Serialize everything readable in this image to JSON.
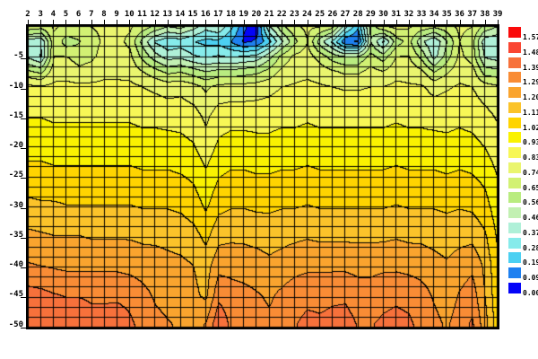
{
  "figure": {
    "background": "#ffffff",
    "plot_border_color": "#000000",
    "mesh_line_color": "#000000"
  },
  "x_axis": {
    "position": "top",
    "labels": [
      "2",
      "3",
      "4",
      "5",
      "6",
      "7",
      "8",
      "9",
      "10",
      "11",
      "12",
      "13",
      "14",
      "15",
      "16",
      "17",
      "18",
      "19",
      "20",
      "21",
      "22",
      "23",
      "24",
      "25",
      "26",
      "27",
      "28",
      "29",
      "30",
      "31",
      "32",
      "33",
      "34",
      "35",
      "36",
      "37",
      "38",
      "39"
    ]
  },
  "y_axis": {
    "labels": [
      "-5",
      "-10",
      "-15",
      "-20",
      "-25",
      "-30",
      "-35",
      "-40",
      "-45",
      "-50"
    ]
  },
  "colorbar": {
    "position": "right",
    "entries": [
      {
        "value": "1.57",
        "color": "#fa0a0a"
      },
      {
        "value": "1.48",
        "color": "#fa4632"
      },
      {
        "value": "1.39",
        "color": "#f7713b"
      },
      {
        "value": "1.29",
        "color": "#f98c35"
      },
      {
        "value": "1.20",
        "color": "#faa42e"
      },
      {
        "value": "1.11",
        "color": "#fbc32a"
      },
      {
        "value": "1.02",
        "color": "#ffd400"
      },
      {
        "value": "0.93",
        "color": "#faf200"
      },
      {
        "value": "0.83",
        "color": "#f7f756"
      },
      {
        "value": "0.74",
        "color": "#eaf56e"
      },
      {
        "value": "0.65",
        "color": "#d2f173"
      },
      {
        "value": "0.56",
        "color": "#b9ec80"
      },
      {
        "value": "0.46",
        "color": "#c2f0b2"
      },
      {
        "value": "0.37",
        "color": "#aff0d8"
      },
      {
        "value": "0.28",
        "color": "#86ebeb"
      },
      {
        "value": "0.19",
        "color": "#4cd0f2"
      },
      {
        "value": "0.09",
        "color": "#1e80f0"
      },
      {
        "value": "0.00",
        "color": "#0404f8"
      }
    ]
  },
  "chart_data": {
    "type": "heatmap",
    "subtype": "filled-contour-with-mesh",
    "title": "",
    "xlabel": "",
    "ylabel": "",
    "x": [
      2,
      3,
      4,
      5,
      6,
      7,
      8,
      9,
      10,
      11,
      12,
      13,
      14,
      15,
      16,
      17,
      18,
      19,
      20,
      21,
      22,
      23,
      24,
      25,
      26,
      27,
      28,
      29,
      30,
      31,
      32,
      33,
      34,
      35,
      36,
      37,
      38,
      39
    ],
    "depths": [
      0,
      -2.5,
      -5,
      -7.5,
      -10,
      -15,
      -20,
      -25,
      -30,
      -35,
      -40,
      -45,
      -50
    ],
    "depth_axis_range": [
      0,
      -50.5
    ],
    "value_min": 0.0,
    "value_max": 1.57,
    "contour_interval": 0.0923,
    "grid": true,
    "mesh_columns": 37,
    "mesh_rows": 30,
    "legend_position": "right",
    "colors_low_to_high": [
      "#0404f8",
      "#1e80f0",
      "#4cd0f2",
      "#86ebeb",
      "#aff0d8",
      "#c2f0b2",
      "#b9ec80",
      "#d2f173",
      "#eaf56e",
      "#f7f756",
      "#faf200",
      "#ffd400",
      "#fbc32a",
      "#faa42e",
      "#f98c35",
      "#f7713b",
      "#fa4632",
      "#fa0a0a"
    ],
    "values": [
      [
        0.7,
        0.68,
        0.75,
        0.72,
        0.72,
        0.74,
        0.76,
        0.76,
        0.75,
        0.7,
        0.62,
        0.55,
        0.58,
        0.5,
        0.4,
        0.45,
        0.3,
        0.1,
        0.06,
        0.45,
        0.62,
        0.72,
        0.76,
        0.74,
        0.68,
        0.4,
        0.2,
        0.6,
        0.72,
        0.76,
        0.75,
        0.7,
        0.66,
        0.7,
        0.76,
        0.74,
        0.62,
        0.55
      ],
      [
        0.42,
        0.38,
        0.72,
        0.6,
        0.64,
        0.7,
        0.76,
        0.76,
        0.72,
        0.52,
        0.36,
        0.3,
        0.32,
        0.28,
        0.25,
        0.25,
        0.18,
        0.08,
        0.1,
        0.25,
        0.45,
        0.62,
        0.74,
        0.5,
        0.35,
        0.1,
        0.08,
        0.55,
        0.35,
        0.6,
        0.68,
        0.48,
        0.38,
        0.55,
        0.74,
        0.68,
        0.4,
        0.38
      ],
      [
        0.44,
        0.36,
        0.74,
        0.74,
        0.7,
        0.72,
        0.78,
        0.78,
        0.76,
        0.62,
        0.5,
        0.42,
        0.44,
        0.38,
        0.36,
        0.38,
        0.36,
        0.38,
        0.4,
        0.52,
        0.68,
        0.76,
        0.78,
        0.7,
        0.6,
        0.55,
        0.56,
        0.68,
        0.6,
        0.74,
        0.74,
        0.62,
        0.42,
        0.6,
        0.76,
        0.7,
        0.45,
        0.42
      ],
      [
        0.66,
        0.62,
        0.79,
        0.8,
        0.76,
        0.78,
        0.81,
        0.81,
        0.8,
        0.74,
        0.68,
        0.62,
        0.64,
        0.6,
        0.55,
        0.58,
        0.58,
        0.6,
        0.62,
        0.68,
        0.76,
        0.8,
        0.81,
        0.79,
        0.75,
        0.72,
        0.72,
        0.77,
        0.74,
        0.8,
        0.8,
        0.76,
        0.64,
        0.72,
        0.8,
        0.78,
        0.6,
        0.58
      ],
      [
        0.85,
        0.84,
        0.85,
        0.85,
        0.85,
        0.85,
        0.85,
        0.85,
        0.85,
        0.83,
        0.81,
        0.79,
        0.8,
        0.77,
        0.72,
        0.76,
        0.77,
        0.77,
        0.78,
        0.8,
        0.83,
        0.84,
        0.85,
        0.84,
        0.83,
        0.82,
        0.82,
        0.83,
        0.83,
        0.85,
        0.84,
        0.84,
        0.8,
        0.82,
        0.84,
        0.83,
        0.78,
        0.75
      ],
      [
        0.92,
        0.92,
        0.91,
        0.91,
        0.91,
        0.91,
        0.91,
        0.91,
        0.91,
        0.9,
        0.9,
        0.89,
        0.89,
        0.87,
        0.81,
        0.88,
        0.89,
        0.89,
        0.89,
        0.89,
        0.9,
        0.9,
        0.91,
        0.9,
        0.9,
        0.9,
        0.9,
        0.9,
        0.9,
        0.91,
        0.9,
        0.9,
        0.89,
        0.89,
        0.9,
        0.89,
        0.86,
        0.82
      ],
      [
        0.98,
        0.98,
        0.97,
        0.97,
        0.97,
        0.97,
        0.97,
        0.97,
        0.97,
        0.96,
        0.96,
        0.96,
        0.95,
        0.93,
        0.87,
        0.94,
        0.96,
        0.96,
        0.95,
        0.95,
        0.96,
        0.96,
        0.97,
        0.96,
        0.96,
        0.96,
        0.96,
        0.96,
        0.96,
        0.97,
        0.96,
        0.96,
        0.96,
        0.95,
        0.96,
        0.95,
        0.92,
        0.87
      ],
      [
        1.05,
        1.05,
        1.04,
        1.04,
        1.04,
        1.04,
        1.04,
        1.04,
        1.04,
        1.03,
        1.03,
        1.03,
        1.02,
        1.0,
        0.94,
        1.01,
        1.03,
        1.03,
        1.02,
        1.02,
        1.03,
        1.03,
        1.04,
        1.03,
        1.03,
        1.03,
        1.03,
        1.03,
        1.03,
        1.04,
        1.03,
        1.03,
        1.03,
        1.02,
        1.03,
        1.02,
        0.99,
        0.92
      ],
      [
        1.13,
        1.12,
        1.12,
        1.11,
        1.11,
        1.11,
        1.11,
        1.11,
        1.11,
        1.1,
        1.1,
        1.1,
        1.09,
        1.06,
        1.0,
        1.08,
        1.1,
        1.1,
        1.09,
        1.09,
        1.1,
        1.1,
        1.11,
        1.1,
        1.1,
        1.1,
        1.1,
        1.1,
        1.1,
        1.11,
        1.1,
        1.1,
        1.1,
        1.09,
        1.1,
        1.09,
        1.05,
        0.96
      ],
      [
        1.22,
        1.21,
        1.2,
        1.2,
        1.2,
        1.19,
        1.19,
        1.19,
        1.19,
        1.18,
        1.18,
        1.17,
        1.16,
        1.14,
        1.08,
        1.17,
        1.18,
        1.18,
        1.17,
        1.16,
        1.17,
        1.18,
        1.19,
        1.18,
        1.18,
        1.18,
        1.18,
        1.18,
        1.18,
        1.19,
        1.18,
        1.18,
        1.17,
        1.16,
        1.17,
        1.17,
        1.12,
        1.0
      ],
      [
        1.3,
        1.29,
        1.28,
        1.27,
        1.27,
        1.27,
        1.27,
        1.27,
        1.26,
        1.25,
        1.24,
        1.23,
        1.22,
        1.2,
        1.16,
        1.26,
        1.26,
        1.25,
        1.24,
        1.22,
        1.24,
        1.26,
        1.27,
        1.27,
        1.27,
        1.27,
        1.26,
        1.26,
        1.27,
        1.27,
        1.26,
        1.25,
        1.23,
        1.21,
        1.24,
        1.27,
        1.18,
        1.03
      ],
      [
        1.42,
        1.41,
        1.39,
        1.38,
        1.38,
        1.37,
        1.37,
        1.37,
        1.36,
        1.32,
        1.28,
        1.26,
        1.24,
        1.22,
        1.18,
        1.36,
        1.33,
        1.32,
        1.3,
        1.28,
        1.31,
        1.34,
        1.36,
        1.36,
        1.37,
        1.37,
        1.34,
        1.34,
        1.36,
        1.37,
        1.36,
        1.33,
        1.28,
        1.24,
        1.3,
        1.34,
        1.2,
        1.04
      ],
      [
        1.47,
        1.46,
        1.44,
        1.43,
        1.44,
        1.42,
        1.42,
        1.43,
        1.4,
        1.36,
        1.32,
        1.3,
        1.28,
        1.26,
        1.3,
        1.46,
        1.36,
        1.35,
        1.33,
        1.31,
        1.34,
        1.38,
        1.41,
        1.4,
        1.41,
        1.42,
        1.38,
        1.38,
        1.4,
        1.41,
        1.4,
        1.36,
        1.32,
        1.28,
        1.34,
        1.4,
        1.24,
        1.05
      ]
    ]
  }
}
